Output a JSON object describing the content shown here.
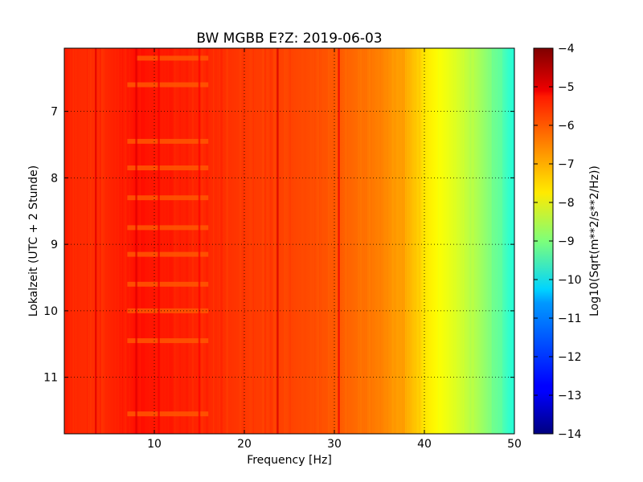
{
  "chart_data": {
    "type": "heatmap",
    "title": "BW MGBB E?Z: 2019-06-03",
    "xlabel": "Frequency [Hz]",
    "ylabel": "Lokalzeit (UTC + 2 Stunde)",
    "xlim": [
      0,
      50
    ],
    "ylim": [
      6.05,
      11.85
    ],
    "y_inverted": true,
    "x_ticks": [
      10,
      20,
      30,
      40,
      50
    ],
    "y_ticks": [
      7,
      8,
      9,
      10,
      11
    ],
    "grid": true,
    "colorbar": {
      "label": "Log10(Sqrt(m**2/s**2/Hz))",
      "range": [
        -14,
        -4
      ],
      "ticks": [
        -14,
        -13,
        -12,
        -11,
        -10,
        -9,
        -8,
        -7,
        -6,
        -5,
        -4
      ],
      "colormap": "jet"
    },
    "spectrum_profile": [
      {
        "freq": 0,
        "value": -5.6
      },
      {
        "freq": 3.5,
        "value": -5.7
      },
      {
        "freq": 8,
        "value": -5.4
      },
      {
        "freq": 15,
        "value": -5.6
      },
      {
        "freq": 20,
        "value": -5.8
      },
      {
        "freq": 25,
        "value": -5.9
      },
      {
        "freq": 30,
        "value": -6.1
      },
      {
        "freq": 35,
        "value": -6.5
      },
      {
        "freq": 38,
        "value": -6.9
      },
      {
        "freq": 40,
        "value": -7.5
      },
      {
        "freq": 43,
        "value": -8.0
      },
      {
        "freq": 46,
        "value": -8.6
      },
      {
        "freq": 48,
        "value": -9.2
      },
      {
        "freq": 50,
        "value": -10.0
      }
    ],
    "vertical_lines_hz": [
      {
        "freq": 3.5,
        "value": -5.0
      },
      {
        "freq": 8.0,
        "value": -5.0
      },
      {
        "freq": 10.5,
        "value": -5.2
      },
      {
        "freq": 15.0,
        "value": -5.3
      },
      {
        "freq": 23.7,
        "value": -4.9
      },
      {
        "freq": 30.5,
        "value": -5.1
      }
    ],
    "horizontal_bands": [
      {
        "time": 6.2,
        "f_start": 8,
        "f_end": 16
      },
      {
        "time": 6.6,
        "f_start": 7,
        "f_end": 16
      },
      {
        "time": 7.45,
        "f_start": 7,
        "f_end": 16
      },
      {
        "time": 7.85,
        "f_start": 7,
        "f_end": 16
      },
      {
        "time": 8.3,
        "f_start": 7,
        "f_end": 16
      },
      {
        "time": 8.75,
        "f_start": 7,
        "f_end": 16
      },
      {
        "time": 9.15,
        "f_start": 7,
        "f_end": 16
      },
      {
        "time": 9.6,
        "f_start": 7,
        "f_end": 16
      },
      {
        "time": 10.0,
        "f_start": 7,
        "f_end": 16
      },
      {
        "time": 10.45,
        "f_start": 7,
        "f_end": 16
      },
      {
        "time": 11.55,
        "f_start": 7,
        "f_end": 16
      }
    ]
  }
}
